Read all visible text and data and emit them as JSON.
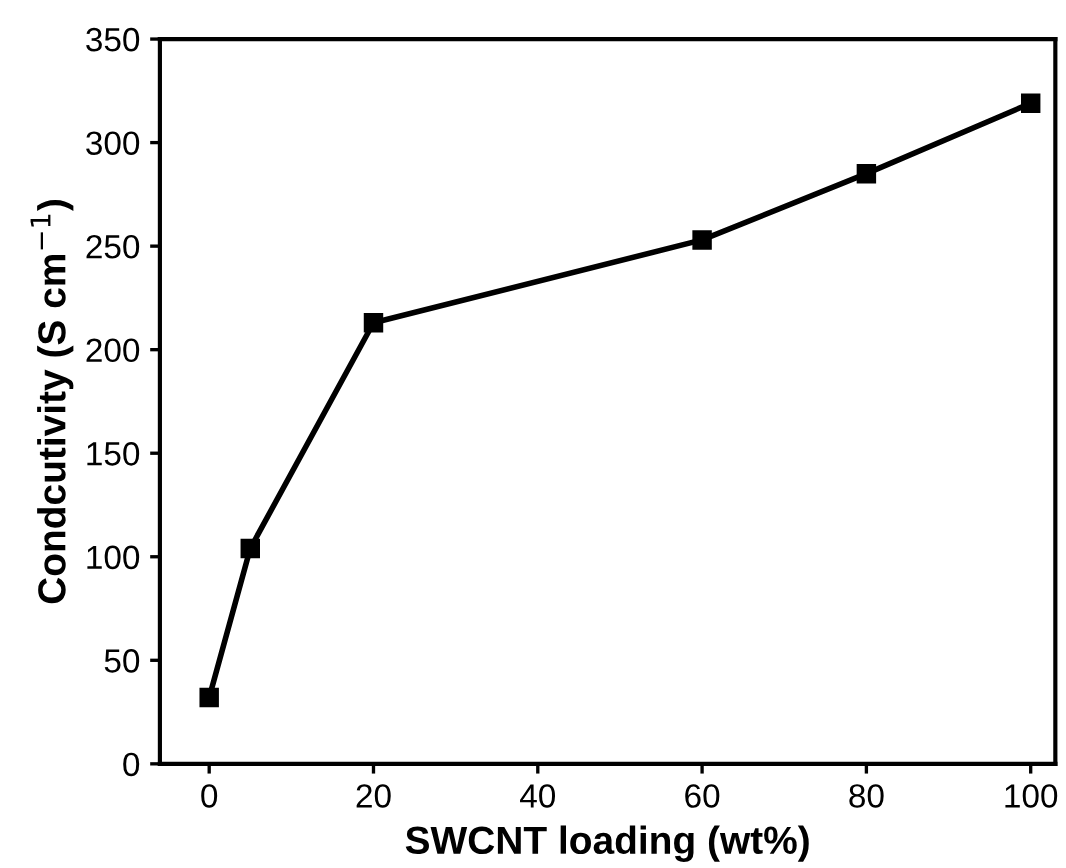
{
  "chart_data": {
    "type": "line",
    "xlabel": "SWCNT loading (wt%)",
    "ylabel": "Condcutivity (S cm$^{−1}$)",
    "x": [
      0,
      5,
      20,
      60,
      80,
      100
    ],
    "series": [
      {
        "color": "#000000",
        "values": [
          32,
          104,
          213,
          253,
          285,
          319
        ]
      }
    ],
    "xlim": [
      -6,
      103
    ],
    "xticks": [
      0,
      20,
      40,
      60,
      80,
      100
    ],
    "ylim": [
      0,
      350
    ],
    "yticks": [
      0,
      50,
      100,
      150,
      200,
      250,
      300,
      350
    ],
    "marker": "square",
    "line_style": "solid",
    "grid": false,
    "legend": false
  }
}
